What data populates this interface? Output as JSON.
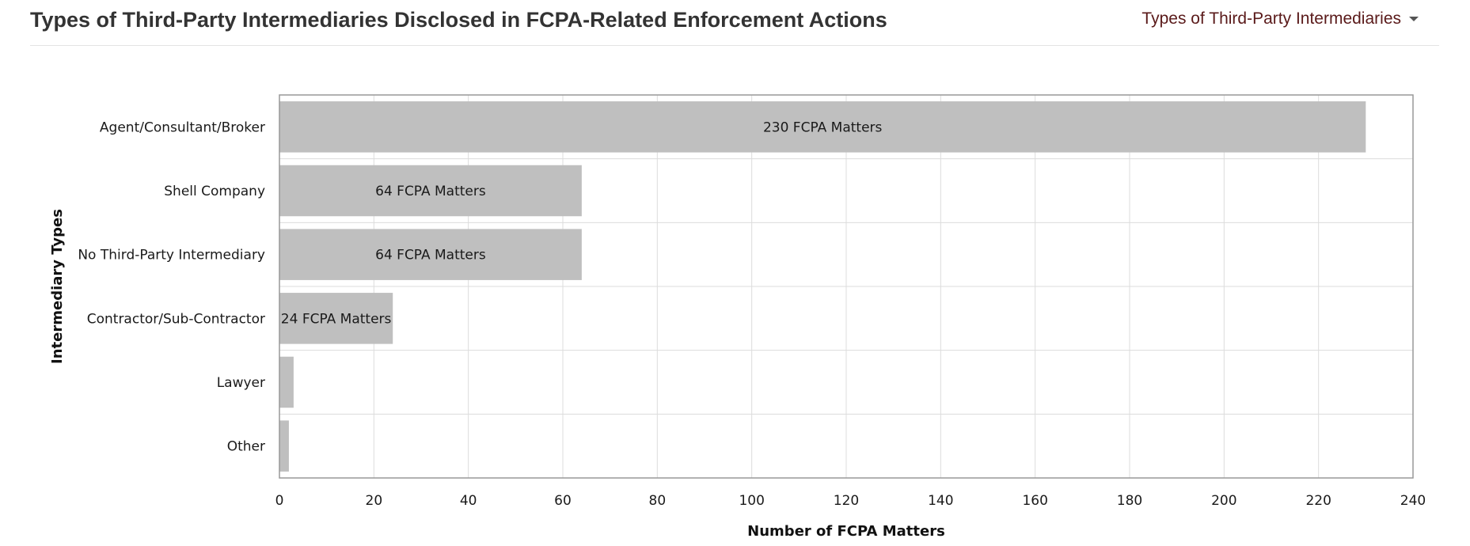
{
  "header": {
    "title": "Types of Third-Party Intermediaries Disclosed in FCPA-Related Enforcement Actions",
    "dropdown_label": "Types of Third-Party Intermediaries",
    "dropdown_icon": "caret-down-icon"
  },
  "chart_data": {
    "type": "bar",
    "orientation": "horizontal",
    "categories": [
      "Agent/Consultant/Broker",
      "Shell Company",
      "No Third-Party Intermediary",
      "Contractor/Sub-Contractor",
      "Lawyer",
      "Other"
    ],
    "values": [
      230,
      64,
      64,
      24,
      3,
      2
    ],
    "data_labels": [
      "230 FCPA Matters",
      "64 FCPA Matters",
      "64 FCPA Matters",
      "24 FCPA Matters",
      "",
      ""
    ],
    "xlabel": "Number of FCPA Matters",
    "ylabel": "Intermediary Types",
    "xlim": [
      0,
      240
    ],
    "xticks": [
      0,
      20,
      40,
      60,
      80,
      100,
      120,
      140,
      160,
      180,
      200,
      220,
      240
    ],
    "grid": true,
    "bar_color": "#bfbfbf",
    "grid_color": "#dcdcdc",
    "frame_color": "#999999"
  }
}
